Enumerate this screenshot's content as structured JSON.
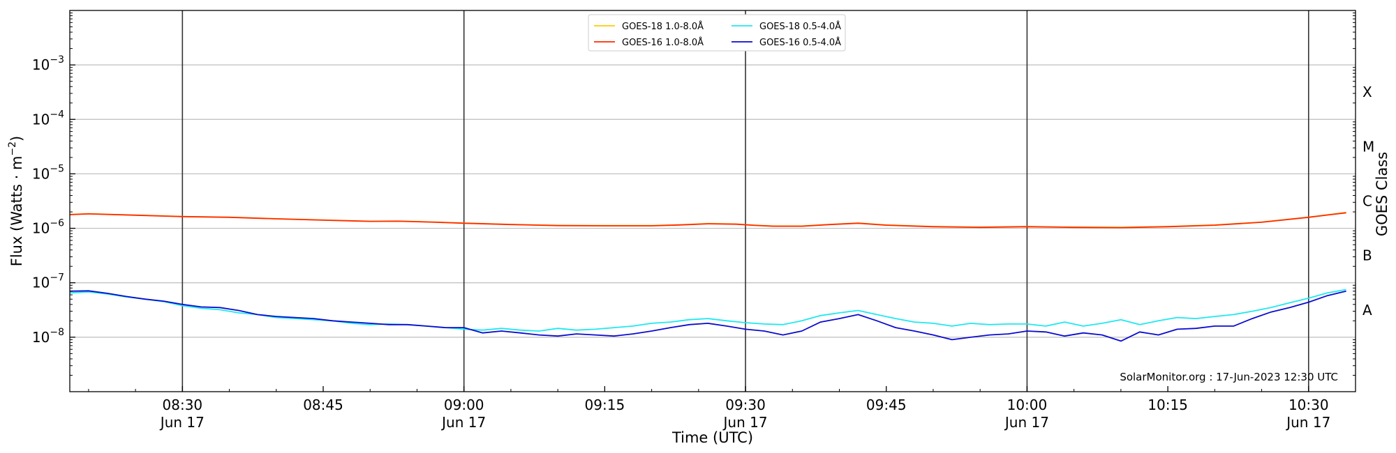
{
  "chart_data": {
    "type": "line",
    "xlabel": "Time (UTC)",
    "ylabel": "Flux (Watts · m",
    "ylabel_sup": "−2",
    "ylabel_close": ")",
    "y2label": "GOES Class",
    "yscale": "log",
    "ylim": [
      1e-09,
      0.01
    ],
    "xlim": [
      "08:18",
      "10:35"
    ],
    "y_ticks": [
      {
        "value": 1e-08,
        "base": "10",
        "exp": "−8"
      },
      {
        "value": 1e-07,
        "base": "10",
        "exp": "−7"
      },
      {
        "value": 1e-06,
        "base": "10",
        "exp": "−6"
      },
      {
        "value": 1e-05,
        "base": "10",
        "exp": "−5"
      },
      {
        "value": 0.0001,
        "base": "10",
        "exp": "−4"
      },
      {
        "value": 0.001,
        "base": "10",
        "exp": "−3"
      }
    ],
    "x_ticks": [
      {
        "time": "08:30",
        "label": "08:30",
        "sub": "Jun 17"
      },
      {
        "time": "08:45",
        "label": "08:45",
        "sub": ""
      },
      {
        "time": "09:00",
        "label": "09:00",
        "sub": "Jun 17"
      },
      {
        "time": "09:15",
        "label": "09:15",
        "sub": ""
      },
      {
        "time": "09:30",
        "label": "09:30",
        "sub": "Jun 17"
      },
      {
        "time": "09:45",
        "label": "09:45",
        "sub": ""
      },
      {
        "time": "10:00",
        "label": "10:00",
        "sub": "Jun 17"
      },
      {
        "time": "10:15",
        "label": "10:15",
        "sub": ""
      },
      {
        "time": "10:30",
        "label": "10:30",
        "sub": "Jun 17"
      }
    ],
    "vlines": [
      "08:30",
      "09:00",
      "09:30",
      "10:00",
      "10:30"
    ],
    "goes_classes": [
      {
        "label": "A",
        "value": 3.16e-08
      },
      {
        "label": "B",
        "value": 3.16e-07
      },
      {
        "label": "C",
        "value": 3.16e-06
      },
      {
        "label": "M",
        "value": 3.16e-05
      },
      {
        "label": "X",
        "value": 0.000316
      }
    ],
    "grid": "horizontal",
    "legend_position": "top-center",
    "series": [
      {
        "name": "GOES-18 1.0-8.0Å",
        "color": "#ffcc00",
        "x": [
          "08:18",
          "08:20",
          "08:25",
          "08:30",
          "08:35",
          "08:40",
          "08:45",
          "08:50",
          "08:53",
          "08:57",
          "09:00",
          "09:05",
          "09:10",
          "09:15",
          "09:20",
          "09:23",
          "09:26",
          "09:29",
          "09:31",
          "09:33",
          "09:36",
          "09:39",
          "09:42",
          "09:45",
          "09:50",
          "09:55",
          "10:00",
          "10:05",
          "10:10",
          "10:15",
          "10:20",
          "10:25",
          "10:30",
          "10:34"
        ],
        "values": [
          1.8e-06,
          1.85e-06,
          1.75e-06,
          1.65e-06,
          1.6e-06,
          1.5e-06,
          1.42e-06,
          1.35e-06,
          1.36e-06,
          1.3e-06,
          1.25e-06,
          1.18e-06,
          1.13e-06,
          1.12e-06,
          1.12e-06,
          1.16e-06,
          1.22e-06,
          1.2e-06,
          1.14e-06,
          1.1e-06,
          1.1e-06,
          1.18e-06,
          1.25e-06,
          1.15e-06,
          1.08e-06,
          1.05e-06,
          1.08e-06,
          1.05e-06,
          1.04e-06,
          1.08e-06,
          1.15e-06,
          1.3e-06,
          1.6e-06,
          1.95e-06
        ]
      },
      {
        "name": "GOES-16 1.0-8.0Å",
        "color": "#ff2a00",
        "x": [
          "08:18",
          "08:20",
          "08:25",
          "08:30",
          "08:35",
          "08:40",
          "08:45",
          "08:50",
          "08:53",
          "08:57",
          "09:00",
          "09:05",
          "09:10",
          "09:15",
          "09:20",
          "09:23",
          "09:26",
          "09:29",
          "09:31",
          "09:33",
          "09:36",
          "09:39",
          "09:42",
          "09:45",
          "09:50",
          "09:55",
          "10:00",
          "10:05",
          "10:10",
          "10:15",
          "10:20",
          "10:25",
          "10:30",
          "10:34"
        ],
        "values": [
          1.78e-06,
          1.84e-06,
          1.74e-06,
          1.64e-06,
          1.59e-06,
          1.49e-06,
          1.41e-06,
          1.34e-06,
          1.35e-06,
          1.29e-06,
          1.24e-06,
          1.17e-06,
          1.12e-06,
          1.11e-06,
          1.11e-06,
          1.15e-06,
          1.21e-06,
          1.19e-06,
          1.13e-06,
          1.09e-06,
          1.09e-06,
          1.17e-06,
          1.24e-06,
          1.14e-06,
          1.07e-06,
          1.04e-06,
          1.07e-06,
          1.04e-06,
          1.03e-06,
          1.07e-06,
          1.14e-06,
          1.29e-06,
          1.59e-06,
          1.93e-06
        ]
      },
      {
        "name": "GOES-18 0.5-4.0Å",
        "color": "#1ee8f0",
        "x": [
          "08:18",
          "08:20",
          "08:22",
          "08:24",
          "08:26",
          "08:28",
          "08:30",
          "08:32",
          "08:34",
          "08:36",
          "08:38",
          "08:40",
          "08:42",
          "08:44",
          "08:46",
          "08:48",
          "08:50",
          "08:52",
          "08:54",
          "08:56",
          "08:58",
          "09:00",
          "09:02",
          "09:04",
          "09:06",
          "09:08",
          "09:10",
          "09:12",
          "09:14",
          "09:16",
          "09:18",
          "09:20",
          "09:22",
          "09:24",
          "09:26",
          "09:28",
          "09:30",
          "09:32",
          "09:34",
          "09:36",
          "09:38",
          "09:40",
          "09:42",
          "09:44",
          "09:46",
          "09:48",
          "09:50",
          "09:52",
          "09:54",
          "09:56",
          "09:58",
          "10:00",
          "10:02",
          "10:04",
          "10:06",
          "10:08",
          "10:10",
          "10:12",
          "10:14",
          "10:16",
          "10:18",
          "10:20",
          "10:22",
          "10:24",
          "10:26",
          "10:28",
          "10:30",
          "10:32",
          "10:34"
        ],
        "values": [
          6.5e-08,
          6.8e-08,
          6.2e-08,
          5.5e-08,
          5e-08,
          4.5e-08,
          3.8e-08,
          3.4e-08,
          3.2e-08,
          2.8e-08,
          2.6e-08,
          2.3e-08,
          2.2e-08,
          2.1e-08,
          2e-08,
          1.8e-08,
          1.7e-08,
          1.75e-08,
          1.7e-08,
          1.6e-08,
          1.5e-08,
          1.4e-08,
          1.35e-08,
          1.45e-08,
          1.35e-08,
          1.3e-08,
          1.45e-08,
          1.35e-08,
          1.4e-08,
          1.5e-08,
          1.6e-08,
          1.8e-08,
          1.9e-08,
          2.1e-08,
          2.2e-08,
          2e-08,
          1.85e-08,
          1.75e-08,
          1.7e-08,
          2e-08,
          2.5e-08,
          2.8e-08,
          3.1e-08,
          2.6e-08,
          2.2e-08,
          1.9e-08,
          1.8e-08,
          1.6e-08,
          1.8e-08,
          1.7e-08,
          1.75e-08,
          1.75e-08,
          1.6e-08,
          1.9e-08,
          1.6e-08,
          1.8e-08,
          2.1e-08,
          1.7e-08,
          2e-08,
          2.3e-08,
          2.2e-08,
          2.4e-08,
          2.6e-08,
          3e-08,
          3.5e-08,
          4.3e-08,
          5.2e-08,
          6.5e-08,
          7.5e-08
        ]
      },
      {
        "name": "GOES-16 0.5-4.0Å",
        "color": "#0a0ad0",
        "x": [
          "08:18",
          "08:20",
          "08:22",
          "08:24",
          "08:26",
          "08:28",
          "08:30",
          "08:32",
          "08:34",
          "08:36",
          "08:38",
          "08:40",
          "08:42",
          "08:44",
          "08:46",
          "08:48",
          "08:50",
          "08:52",
          "08:54",
          "08:56",
          "08:58",
          "09:00",
          "09:02",
          "09:04",
          "09:06",
          "09:08",
          "09:10",
          "09:12",
          "09:14",
          "09:16",
          "09:18",
          "09:20",
          "09:22",
          "09:24",
          "09:26",
          "09:28",
          "09:30",
          "09:32",
          "09:34",
          "09:36",
          "09:38",
          "09:40",
          "09:42",
          "09:44",
          "09:46",
          "09:48",
          "09:50",
          "09:52",
          "09:54",
          "09:56",
          "09:58",
          "10:00",
          "10:02",
          "10:04",
          "10:06",
          "10:08",
          "10:10",
          "10:12",
          "10:14",
          "10:16",
          "10:18",
          "10:20",
          "10:22",
          "10:24",
          "10:26",
          "10:28",
          "10:30",
          "10:32",
          "10:34"
        ],
        "values": [
          7e-08,
          7.1e-08,
          6.4e-08,
          5.6e-08,
          5e-08,
          4.6e-08,
          4e-08,
          3.6e-08,
          3.5e-08,
          3.1e-08,
          2.6e-08,
          2.4e-08,
          2.3e-08,
          2.2e-08,
          2e-08,
          1.9e-08,
          1.8e-08,
          1.7e-08,
          1.7e-08,
          1.6e-08,
          1.5e-08,
          1.5e-08,
          1.2e-08,
          1.3e-08,
          1.2e-08,
          1.1e-08,
          1.05e-08,
          1.15e-08,
          1.1e-08,
          1.05e-08,
          1.15e-08,
          1.3e-08,
          1.5e-08,
          1.7e-08,
          1.8e-08,
          1.6e-08,
          1.4e-08,
          1.3e-08,
          1.1e-08,
          1.3e-08,
          1.9e-08,
          2.2e-08,
          2.6e-08,
          2e-08,
          1.5e-08,
          1.3e-08,
          1.1e-08,
          9e-09,
          1e-08,
          1.1e-08,
          1.15e-08,
          1.3e-08,
          1.25e-08,
          1.05e-08,
          1.2e-08,
          1.1e-08,
          8.5e-09,
          1.25e-08,
          1.1e-08,
          1.4e-08,
          1.45e-08,
          1.6e-08,
          1.6e-08,
          2.2e-08,
          2.9e-08,
          3.5e-08,
          4.4e-08,
          5.8e-08,
          7e-08
        ]
      }
    ]
  },
  "credit": "SolarMonitor.org : 17-Jun-2023 12:30 UTC"
}
